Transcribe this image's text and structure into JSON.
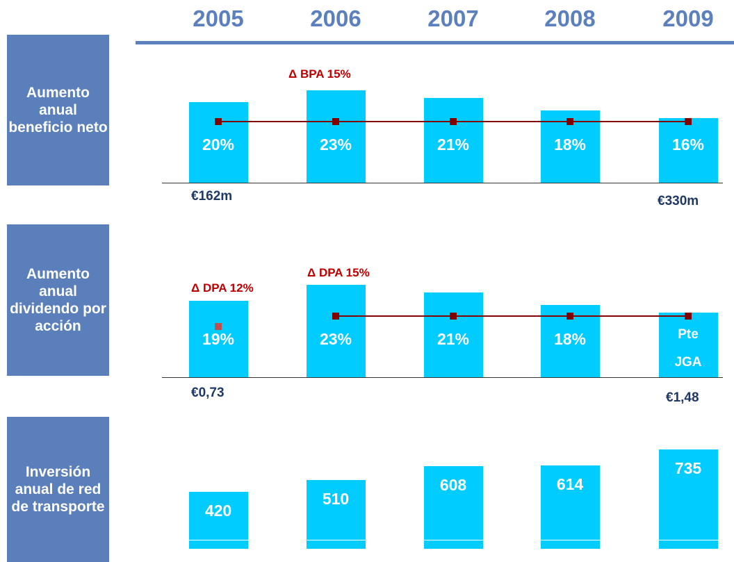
{
  "categories": [
    "2005",
    "2006",
    "2007",
    "2008",
    "2009"
  ],
  "chart_data": [
    {
      "type": "bar",
      "title": "Aumento anual beneficio neto",
      "color": "#00ccff",
      "ylim": [
        0,
        25
      ],
      "values": [
        20,
        23,
        21,
        18,
        16
      ],
      "value_labels": [
        "20%",
        "23%",
        "21%",
        "18%",
        "16%"
      ],
      "annotations": [
        "Δ BPA  15%"
      ],
      "start_label": "€162m",
      "end_label": "€330m"
    },
    {
      "type": "bar",
      "title": "Aumento anual dividendo por acción",
      "color": "#00ccff",
      "ylim": [
        0,
        25
      ],
      "values": [
        19,
        23,
        21,
        18,
        16
      ],
      "value_labels": [
        "19%",
        "23%",
        "21%",
        "18%",
        "Pte JGA"
      ],
      "annotations": [
        "Δ DPA 12%",
        "Δ DPA 15%"
      ],
      "start_label": "€0,73",
      "end_label": "€1,48"
    },
    {
      "type": "bar",
      "title": "Inversión anual de red de transporte",
      "color": "#00ccff",
      "ylim": [
        0,
        800
      ],
      "values": [
        420,
        510,
        608,
        614,
        735
      ]
    }
  ]
}
